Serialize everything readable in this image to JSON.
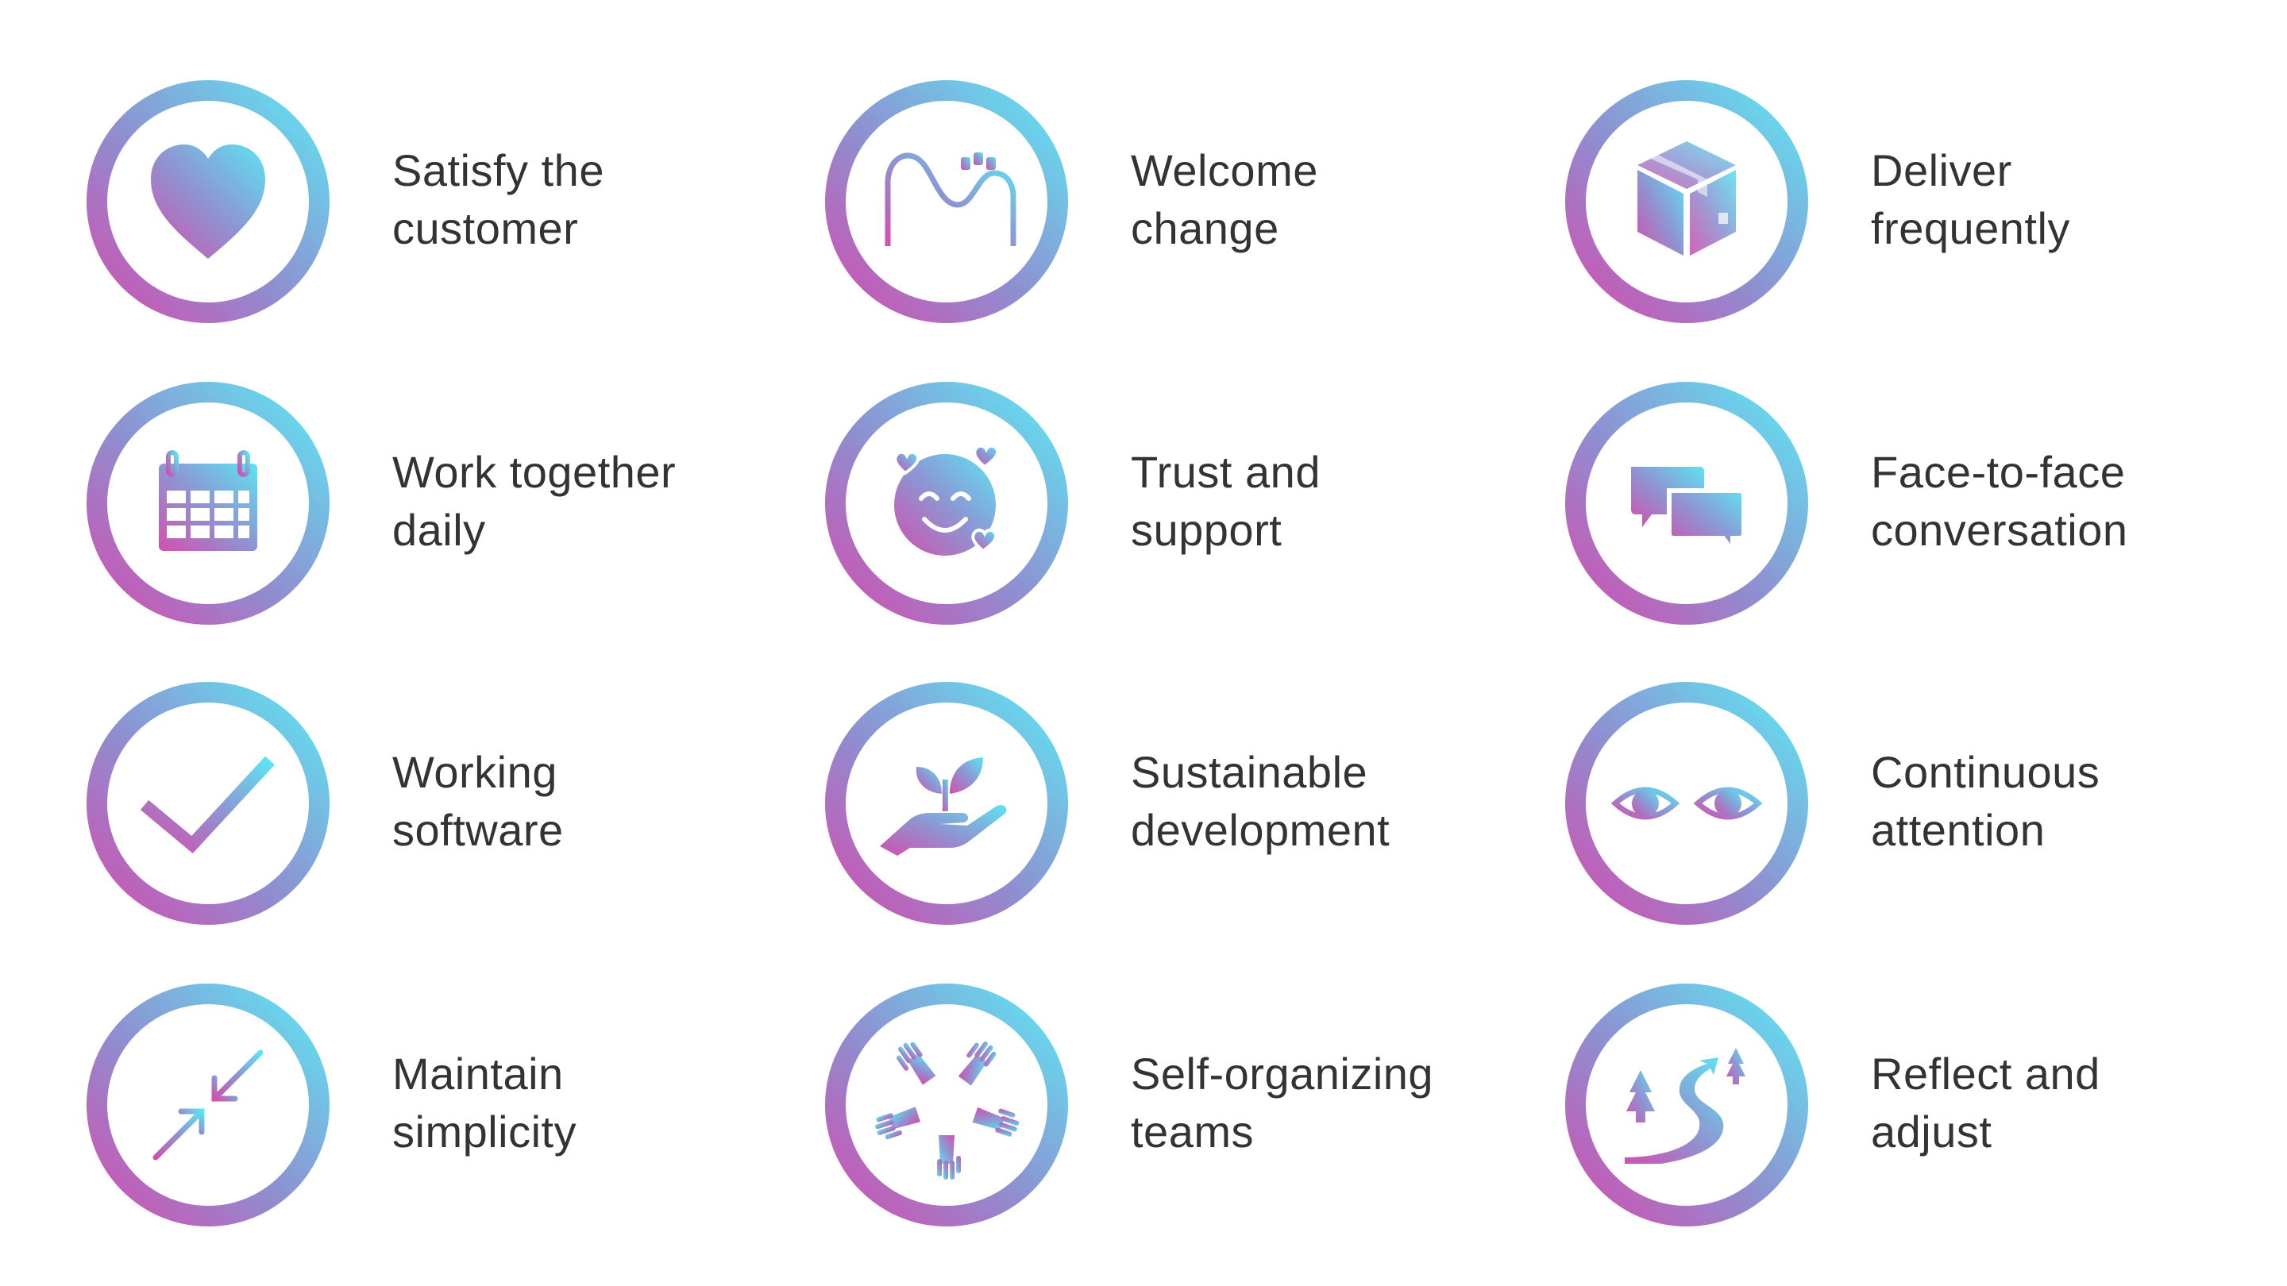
{
  "colors": {
    "gradient_start": "#c455b8",
    "gradient_end": "#66e0f0",
    "text": "#333333",
    "background": "#ffffff"
  },
  "principles": [
    {
      "icon": "heart-icon",
      "line1": "Satisfy the",
      "line2": "customer"
    },
    {
      "icon": "roller-coaster-icon",
      "line1": "Welcome",
      "line2": "change"
    },
    {
      "icon": "package-box-icon",
      "line1": "Deliver",
      "line2": "frequently"
    },
    {
      "icon": "calendar-icon",
      "line1": "Work together",
      "line2": "daily"
    },
    {
      "icon": "smiling-face-hearts-icon",
      "line1": "Trust and",
      "line2": "support"
    },
    {
      "icon": "speech-bubbles-icon",
      "line1": "Face-to-face",
      "line2": "conversation"
    },
    {
      "icon": "checkmark-icon",
      "line1": "Working",
      "line2": "software"
    },
    {
      "icon": "plant-in-hand-icon",
      "line1": "Sustainable",
      "line2": "development"
    },
    {
      "icon": "eyes-icon",
      "line1": "Continuous",
      "line2": "attention"
    },
    {
      "icon": "converging-arrows-icon",
      "line1": "Maintain",
      "line2": "simplicity"
    },
    {
      "icon": "hands-circle-icon",
      "line1": "Self-organizing",
      "line2": "teams"
    },
    {
      "icon": "winding-path-trees-icon",
      "line1": "Reflect and",
      "line2": "adjust"
    }
  ]
}
